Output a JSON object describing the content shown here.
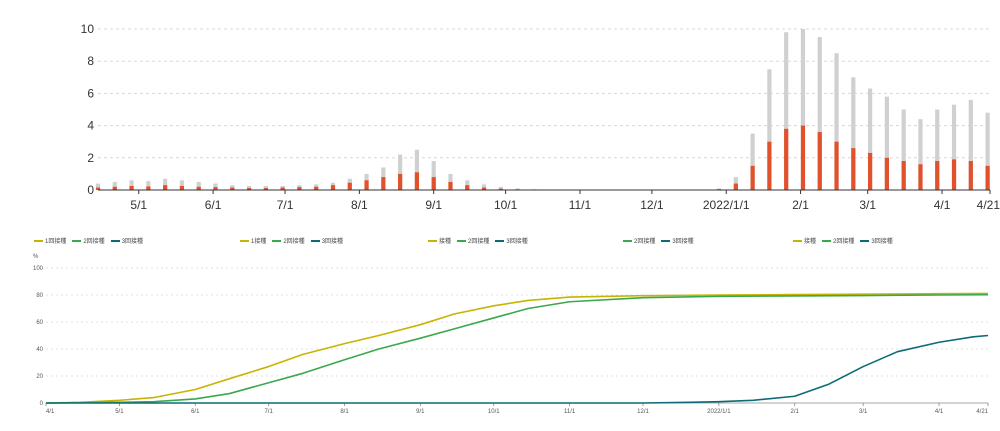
{
  "colors": {
    "total_bar": "#d0d0d0",
    "sub_bar": "#e0512c",
    "dose1": "#c8b400",
    "dose2": "#3aa84f",
    "dose3": "#0d6b77",
    "grid": "#d8d8d8",
    "axis": "#333333"
  },
  "legend_groups": [
    {
      "items": [
        {
          "label": "1回接種",
          "color_key": "dose1"
        },
        {
          "label": "2回接種",
          "color_key": "dose2"
        },
        {
          "label": "3回接種",
          "color_key": "dose3"
        }
      ]
    },
    {
      "items": [
        {
          "label": "1接種",
          "color_key": "dose1"
        },
        {
          "label": "2回接種",
          "color_key": "dose2"
        },
        {
          "label": "3回接種",
          "color_key": "dose3"
        }
      ]
    },
    {
      "items": [
        {
          "label": "接種",
          "color_key": "dose1"
        },
        {
          "label": "2回接種",
          "color_key": "dose2"
        },
        {
          "label": "3回接種",
          "color_key": "dose3"
        }
      ]
    },
    {
      "items": [
        {
          "label": "2回接種",
          "color_key": "dose2"
        },
        {
          "label": "3回接種",
          "color_key": "dose3"
        }
      ]
    },
    {
      "items": [
        {
          "label": "接種",
          "color_key": "dose1"
        },
        {
          "label": "2回接種",
          "color_key": "dose2"
        },
        {
          "label": "3回接種",
          "color_key": "dose3"
        }
      ]
    }
  ],
  "chart_data": [
    {
      "type": "bar",
      "title": "",
      "xlabel": "",
      "ylabel": "",
      "ylim": [
        0,
        10
      ],
      "yticks": [
        0,
        2,
        4,
        6,
        8,
        10
      ],
      "grid": true,
      "x_start": "2021-04-14",
      "x_end": "2022-04-21",
      "x_ticks": [
        {
          "date": "2021-05-01",
          "label": "5/1"
        },
        {
          "date": "2021-06-01",
          "label": "6/1"
        },
        {
          "date": "2021-07-01",
          "label": "7/1"
        },
        {
          "date": "2021-08-01",
          "label": "8/1"
        },
        {
          "date": "2021-09-01",
          "label": "9/1"
        },
        {
          "date": "2021-10-01",
          "label": "10/1"
        },
        {
          "date": "2021-11-01",
          "label": "11/1"
        },
        {
          "date": "2021-12-01",
          "label": "12/1"
        },
        {
          "date": "2022-01-01",
          "label": "2022/1/1"
        },
        {
          "date": "2022-02-01",
          "label": "2/1"
        },
        {
          "date": "2022-03-01",
          "label": "3/1"
        },
        {
          "date": "2022-04-01",
          "label": "4/1"
        },
        {
          "date": "2022-04-21",
          "label": "4/21"
        }
      ],
      "series": [
        {
          "color_key": "total_bar",
          "points": [
            [
              "2021-04-14",
              0.4
            ],
            [
              "2021-04-21",
              0.5
            ],
            [
              "2021-04-28",
              0.6
            ],
            [
              "2021-05-05",
              0.55
            ],
            [
              "2021-05-12",
              0.7
            ],
            [
              "2021-05-19",
              0.6
            ],
            [
              "2021-05-26",
              0.5
            ],
            [
              "2021-06-02",
              0.4
            ],
            [
              "2021-06-09",
              0.3
            ],
            [
              "2021-06-16",
              0.25
            ],
            [
              "2021-06-23",
              0.25
            ],
            [
              "2021-06-30",
              0.25
            ],
            [
              "2021-07-07",
              0.3
            ],
            [
              "2021-07-14",
              0.35
            ],
            [
              "2021-07-21",
              0.45
            ],
            [
              "2021-07-28",
              0.7
            ],
            [
              "2021-08-04",
              1.0
            ],
            [
              "2021-08-11",
              1.4
            ],
            [
              "2021-08-18",
              2.2
            ],
            [
              "2021-08-25",
              2.5
            ],
            [
              "2021-09-01",
              1.8
            ],
            [
              "2021-09-08",
              1.0
            ],
            [
              "2021-09-15",
              0.6
            ],
            [
              "2021-09-22",
              0.35
            ],
            [
              "2021-09-29",
              0.2
            ],
            [
              "2021-10-06",
              0.1
            ],
            [
              "2021-10-13",
              0.05
            ],
            [
              "2021-10-20",
              0.03
            ],
            [
              "2021-10-27",
              0.02
            ],
            [
              "2021-11-03",
              0.02
            ],
            [
              "2021-11-10",
              0.02
            ],
            [
              "2021-11-17",
              0.02
            ],
            [
              "2021-11-24",
              0.02
            ],
            [
              "2021-12-01",
              0.02
            ],
            [
              "2021-12-08",
              0.02
            ],
            [
              "2021-12-15",
              0.02
            ],
            [
              "2021-12-22",
              0.03
            ],
            [
              "2021-12-29",
              0.1
            ],
            [
              "2022-01-05",
              0.8
            ],
            [
              "2022-01-12",
              3.5
            ],
            [
              "2022-01-19",
              7.5
            ],
            [
              "2022-01-26",
              9.8
            ],
            [
              "2022-02-02",
              10.0
            ],
            [
              "2022-02-09",
              9.5
            ],
            [
              "2022-02-16",
              8.5
            ],
            [
              "2022-02-23",
              7.0
            ],
            [
              "2022-03-02",
              6.3
            ],
            [
              "2022-03-09",
              5.8
            ],
            [
              "2022-03-16",
              5.0
            ],
            [
              "2022-03-23",
              4.4
            ],
            [
              "2022-03-30",
              5.0
            ],
            [
              "2022-04-06",
              5.3
            ],
            [
              "2022-04-13",
              5.6
            ],
            [
              "2022-04-20",
              4.8
            ]
          ]
        },
        {
          "color_key": "sub_bar",
          "points": [
            [
              "2021-04-14",
              0.15
            ],
            [
              "2021-04-21",
              0.2
            ],
            [
              "2021-04-28",
              0.25
            ],
            [
              "2021-05-05",
              0.22
            ],
            [
              "2021-05-12",
              0.3
            ],
            [
              "2021-05-19",
              0.25
            ],
            [
              "2021-05-26",
              0.2
            ],
            [
              "2021-06-02",
              0.18
            ],
            [
              "2021-06-09",
              0.15
            ],
            [
              "2021-06-16",
              0.12
            ],
            [
              "2021-06-23",
              0.12
            ],
            [
              "2021-06-30",
              0.15
            ],
            [
              "2021-07-07",
              0.18
            ],
            [
              "2021-07-14",
              0.2
            ],
            [
              "2021-07-21",
              0.3
            ],
            [
              "2021-07-28",
              0.45
            ],
            [
              "2021-08-04",
              0.6
            ],
            [
              "2021-08-11",
              0.8
            ],
            [
              "2021-08-18",
              1.0
            ],
            [
              "2021-08-25",
              1.1
            ],
            [
              "2021-09-01",
              0.8
            ],
            [
              "2021-09-08",
              0.5
            ],
            [
              "2021-09-15",
              0.3
            ],
            [
              "2021-09-22",
              0.15
            ],
            [
              "2021-09-29",
              0.08
            ],
            [
              "2021-10-06",
              0.04
            ],
            [
              "2021-10-13",
              0.02
            ],
            [
              "2021-10-20",
              0.01
            ],
            [
              "2021-10-27",
              0.01
            ],
            [
              "2021-11-03",
              0.01
            ],
            [
              "2021-11-10",
              0.01
            ],
            [
              "2021-11-17",
              0.01
            ],
            [
              "2021-11-24",
              0.01
            ],
            [
              "2021-12-01",
              0.01
            ],
            [
              "2021-12-08",
              0.01
            ],
            [
              "2021-12-15",
              0.01
            ],
            [
              "2021-12-22",
              0.02
            ],
            [
              "2021-12-29",
              0.05
            ],
            [
              "2022-01-05",
              0.4
            ],
            [
              "2022-01-12",
              1.5
            ],
            [
              "2022-01-19",
              3.0
            ],
            [
              "2022-01-26",
              3.8
            ],
            [
              "2022-02-02",
              4.0
            ],
            [
              "2022-02-09",
              3.6
            ],
            [
              "2022-02-16",
              3.0
            ],
            [
              "2022-02-23",
              2.6
            ],
            [
              "2022-03-02",
              2.3
            ],
            [
              "2022-03-09",
              2.0
            ],
            [
              "2022-03-16",
              1.8
            ],
            [
              "2022-03-23",
              1.6
            ],
            [
              "2022-03-30",
              1.8
            ],
            [
              "2022-04-06",
              1.9
            ],
            [
              "2022-04-13",
              1.8
            ],
            [
              "2022-04-20",
              1.5
            ]
          ]
        }
      ]
    },
    {
      "type": "line",
      "title": "",
      "xlabel": "",
      "ylabel": "%",
      "ylim": [
        0,
        100
      ],
      "yticks": [
        0,
        20,
        40,
        60,
        80,
        100
      ],
      "grid": true,
      "x_start": "2021-04-01",
      "x_end": "2022-04-21",
      "x_ticks": [
        {
          "date": "2021-04-01",
          "label": "4/1"
        },
        {
          "date": "2021-05-01",
          "label": "5/1"
        },
        {
          "date": "2021-06-01",
          "label": "6/1"
        },
        {
          "date": "2021-07-01",
          "label": "7/1"
        },
        {
          "date": "2021-08-01",
          "label": "8/1"
        },
        {
          "date": "2021-09-01",
          "label": "9/1"
        },
        {
          "date": "2021-10-01",
          "label": "10/1"
        },
        {
          "date": "2021-11-01",
          "label": "11/1"
        },
        {
          "date": "2021-12-01",
          "label": "12/1"
        },
        {
          "date": "2022-01-01",
          "label": "2022/1/1"
        },
        {
          "date": "2022-02-01",
          "label": "2/1"
        },
        {
          "date": "2022-03-01",
          "label": "3/1"
        },
        {
          "date": "2022-04-01",
          "label": "4/1"
        },
        {
          "date": "2022-04-21",
          "label": "4/21"
        }
      ],
      "series": [
        {
          "name": "1回接種",
          "color_key": "dose1",
          "points": [
            [
              "2021-04-01",
              0
            ],
            [
              "2021-04-15",
              0.5
            ],
            [
              "2021-05-01",
              2
            ],
            [
              "2021-05-15",
              4
            ],
            [
              "2021-06-01",
              10
            ],
            [
              "2021-06-15",
              18
            ],
            [
              "2021-07-01",
              27
            ],
            [
              "2021-07-15",
              36
            ],
            [
              "2021-08-01",
              44
            ],
            [
              "2021-08-15",
              50
            ],
            [
              "2021-09-01",
              58
            ],
            [
              "2021-09-15",
              66
            ],
            [
              "2021-10-01",
              72
            ],
            [
              "2021-10-15",
              76
            ],
            [
              "2021-11-01",
              78.5
            ],
            [
              "2021-12-01",
              79.5
            ],
            [
              "2022-01-01",
              80
            ],
            [
              "2022-02-01",
              80.3
            ],
            [
              "2022-03-01",
              80.6
            ],
            [
              "2022-04-01",
              81
            ],
            [
              "2022-04-21",
              81.2
            ]
          ]
        },
        {
          "name": "2回接種",
          "color_key": "dose2",
          "points": [
            [
              "2021-04-01",
              0
            ],
            [
              "2021-04-15",
              0.2
            ],
            [
              "2021-05-01",
              0.5
            ],
            [
              "2021-05-15",
              1
            ],
            [
              "2021-06-01",
              3
            ],
            [
              "2021-06-15",
              7
            ],
            [
              "2021-07-01",
              15
            ],
            [
              "2021-07-15",
              22
            ],
            [
              "2021-08-01",
              32
            ],
            [
              "2021-08-15",
              40
            ],
            [
              "2021-09-01",
              48
            ],
            [
              "2021-09-15",
              55
            ],
            [
              "2021-10-01",
              63
            ],
            [
              "2021-10-15",
              70
            ],
            [
              "2021-11-01",
              75
            ],
            [
              "2021-12-01",
              78
            ],
            [
              "2022-01-01",
              79
            ],
            [
              "2022-02-01",
              79.3
            ],
            [
              "2022-03-01",
              79.6
            ],
            [
              "2022-04-01",
              80
            ],
            [
              "2022-04-21",
              80.2
            ]
          ]
        },
        {
          "name": "3回接種",
          "color_key": "dose3",
          "points": [
            [
              "2021-04-01",
              0
            ],
            [
              "2021-12-01",
              0
            ],
            [
              "2021-12-20",
              0.5
            ],
            [
              "2022-01-01",
              1
            ],
            [
              "2022-01-15",
              2
            ],
            [
              "2022-02-01",
              5
            ],
            [
              "2022-02-15",
              14
            ],
            [
              "2022-03-01",
              27
            ],
            [
              "2022-03-15",
              38
            ],
            [
              "2022-04-01",
              45
            ],
            [
              "2022-04-15",
              49
            ],
            [
              "2022-04-21",
              50
            ]
          ]
        }
      ]
    }
  ]
}
